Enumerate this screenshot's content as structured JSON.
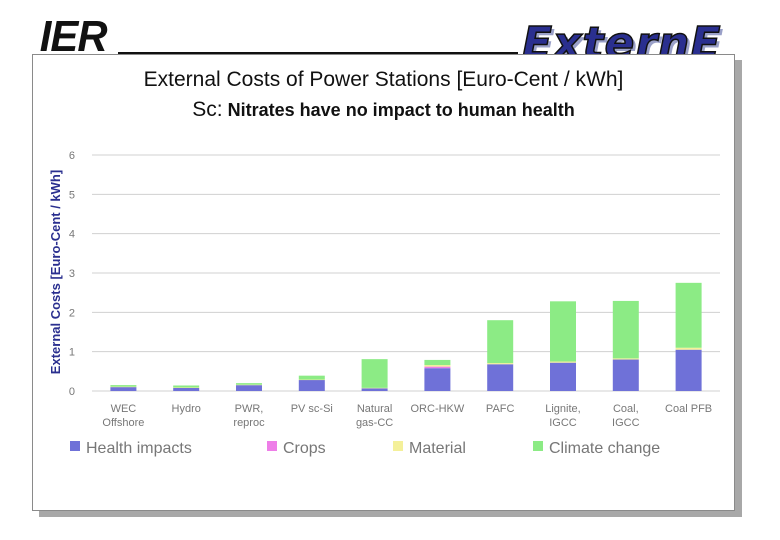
{
  "logos": {
    "left": "IER",
    "right": "ExternE"
  },
  "title": "External Costs of Power Stations [Euro-Cent / kWh]",
  "subtitle_prefix": "Sc:",
  "subtitle": "Nitrates have no impact to human health",
  "colors": {
    "health": "#6f71d8",
    "crops": "#ee7ee8",
    "material": "#f4f09a",
    "climate": "#8ceb85",
    "grid": "#d0d0d0",
    "axis_text": "#777777"
  },
  "chart_data": {
    "type": "bar",
    "stacked": true,
    "title": "External Costs of Power Stations [Euro-Cent / kWh]",
    "ylabel": "External Costs [Euro-Cent / kWh]",
    "ylim": [
      0,
      6
    ],
    "yticks": [
      0,
      1,
      2,
      3,
      4,
      5,
      6
    ],
    "grid": true,
    "legend_position": "bottom",
    "categories": [
      [
        "WEC",
        "Offshore"
      ],
      [
        "Hydro"
      ],
      [
        "PWR,",
        "reproc"
      ],
      [
        "PV sc-Si"
      ],
      [
        "Natural",
        "gas-CC"
      ],
      [
        "ORC-HKW"
      ],
      [
        "PAFC"
      ],
      [
        "Lignite,",
        "IGCC"
      ],
      [
        "Coal,",
        "IGCC"
      ],
      [
        "Coal PFB"
      ]
    ],
    "series": [
      {
        "name": "Health impacts",
        "values": [
          0.1,
          0.08,
          0.15,
          0.28,
          0.07,
          0.58,
          0.68,
          0.72,
          0.8,
          1.05
        ]
      },
      {
        "name": "Crops",
        "values": [
          0.0,
          0.0,
          0.0,
          0.0,
          0.0,
          0.04,
          0.0,
          0.0,
          0.0,
          0.0
        ]
      },
      {
        "name": "Material",
        "values": [
          0.01,
          0.01,
          0.01,
          0.01,
          0.01,
          0.04,
          0.03,
          0.03,
          0.03,
          0.05
        ]
      },
      {
        "name": "Climate change",
        "values": [
          0.04,
          0.05,
          0.04,
          0.1,
          0.73,
          0.13,
          1.09,
          1.53,
          1.46,
          1.65
        ]
      }
    ]
  }
}
